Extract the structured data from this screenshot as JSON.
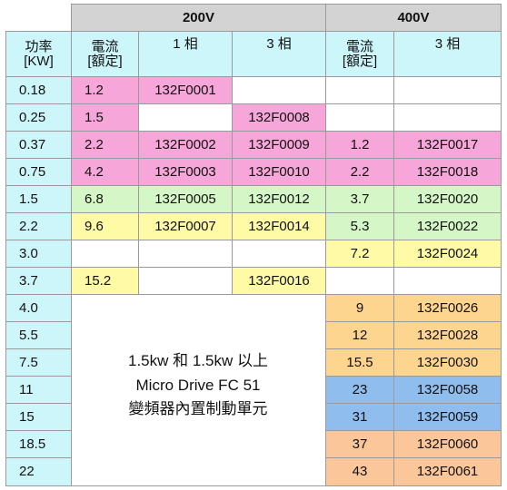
{
  "groups": [
    "200V",
    "400V"
  ],
  "columns": {
    "power": [
      "功率",
      "[KW]"
    ],
    "current_200": [
      "電流",
      "[額定]"
    ],
    "phase1_200": "1 相",
    "phase3_200": "3 相",
    "current_400": [
      "電流",
      "[額定]"
    ],
    "phase3_400": "3 相"
  },
  "rows": [
    {
      "power": "0.18",
      "cur200": "1.2",
      "p1": "132F0001",
      "p3": "",
      "cur400": "",
      "p3_400": ""
    },
    {
      "power": "0.25",
      "cur200": "1.5",
      "p1": "",
      "p3": "132F0008",
      "cur400": "",
      "p3_400": ""
    },
    {
      "power": "0.37",
      "cur200": "2.2",
      "p1": "132F0002",
      "p3": "132F0009",
      "cur400": "1.2",
      "p3_400": "132F0017"
    },
    {
      "power": "0.75",
      "cur200": "4.2",
      "p1": "132F0003",
      "p3": "132F0010",
      "cur400": "2.2",
      "p3_400": "132F0018"
    },
    {
      "power": "1.5",
      "cur200": "6.8",
      "p1": "132F0005",
      "p3": "132F0012",
      "cur400": "3.7",
      "p3_400": "132F0020"
    },
    {
      "power": "2.2",
      "cur200": "9.6",
      "p1": "132F0007",
      "p3": "132F0014",
      "cur400": "5.3",
      "p3_400": "132F0022"
    },
    {
      "power": "3.0",
      "cur200": "",
      "p1": "",
      "p3": "",
      "cur400": "7.2",
      "p3_400": "132F0024"
    },
    {
      "power": "3.7",
      "cur200": "15.2",
      "p1": "",
      "p3": "132F0016",
      "cur400": "",
      "p3_400": ""
    },
    {
      "power": "4.0",
      "cur400": "9",
      "p3_400": "132F0026"
    },
    {
      "power": "5.5",
      "cur400": "12",
      "p3_400": "132F0028"
    },
    {
      "power": "7.5",
      "cur400": "15.5",
      "p3_400": "132F0030"
    },
    {
      "power": "11",
      "cur400": "23",
      "p3_400": "132F0058"
    },
    {
      "power": "15",
      "cur400": "31",
      "p3_400": "132F0059"
    },
    {
      "power": "18.5",
      "cur400": "37",
      "p3_400": "132F0060"
    },
    {
      "power": "22",
      "cur400": "43",
      "p3_400": "132F0061"
    }
  ],
  "note": [
    "1.5kw 和 1.5kw 以上",
    "Micro Drive FC 51",
    "變頻器內置制動單元"
  ],
  "colors": {
    "cyan": "#cdf6fb",
    "pink": "#f6a6d8",
    "green": "#d5f7c8",
    "yellow": "#fefaa6",
    "orange": "#fdd58f",
    "blue": "#8fbdee",
    "peach": "#fbc79a",
    "header_gray": "#d3d3d3"
  },
  "row_colors": {
    "cur200": [
      "pink",
      "pink",
      "pink",
      "pink",
      "green",
      "yellow",
      "white",
      "yellow"
    ],
    "p1": [
      "pink",
      "white",
      "pink",
      "pink",
      "green",
      "yellow",
      "white",
      "white"
    ],
    "p3": [
      "white",
      "pink",
      "pink",
      "pink",
      "green",
      "yellow",
      "white",
      "yellow"
    ],
    "cur400": [
      "white",
      "white",
      "pink",
      "pink",
      "green",
      "green",
      "yellow",
      "white",
      "orange",
      "orange",
      "orange",
      "blue",
      "blue",
      "peach",
      "peach"
    ],
    "p3_400": [
      "white",
      "white",
      "pink",
      "pink",
      "green",
      "green",
      "yellow",
      "white",
      "orange",
      "orange",
      "orange",
      "blue",
      "blue",
      "peach",
      "peach"
    ]
  }
}
